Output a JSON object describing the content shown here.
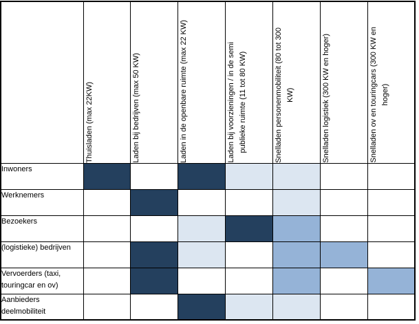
{
  "chart_data": {
    "type": "heatmap",
    "title": "",
    "columns": [
      "Thuisladen (max 22KW)",
      "Laden bij bedrijven (max 50 KW)",
      "Laden in de openbare ruimte (max 22 KW)",
      "Laden bij voorzieningen / in de semi publieke ruimte (11 tot 80 KW)",
      "Snelladen personenmobiliteit (80 tot 300 KW)",
      "Snelladen logistiek (300 KW en hoger)",
      "Snelladen ov en touringcars (300 KW en hoger)"
    ],
    "rows": [
      "Inwoners",
      "Werknemers",
      "Bezoekers",
      "(logistieke) bedrijven",
      "Vervoerders (taxi, touringcar en ov)",
      "Aanbieders deelmobiliteit"
    ],
    "values": [
      [
        "high",
        "none",
        "high",
        "low",
        "low",
        "none",
        "none"
      ],
      [
        "none",
        "high",
        "none",
        "none",
        "low",
        "none",
        "none"
      ],
      [
        "none",
        "none",
        "low",
        "high",
        "mid",
        "none",
        "none"
      ],
      [
        "none",
        "high",
        "low",
        "none",
        "mid",
        "mid",
        "none"
      ],
      [
        "none",
        "high",
        "none",
        "none",
        "mid",
        "none",
        "mid"
      ],
      [
        "none",
        "none",
        "high",
        "low",
        "low",
        "none",
        "none"
      ]
    ],
    "value_colors": {
      "high": "#24405e",
      "mid": "#95b3d7",
      "low": "#dce6f1",
      "none": "#ffffff"
    },
    "grid": true,
    "legend_position": "none"
  },
  "display": {
    "corner_label": "",
    "column_labels": [
      "Thuisladen (max 22KW)",
      "Laden bij bedrijven (max 50 KW)",
      "Laden in de openbare ruimte (max 22 KW)",
      "Laden bij voorzieningen / in de semi\npublieke ruimte (11 tot 80 KW)",
      "Snelladen personenmobiliteit (80 tot 300\nKW)",
      "Snelladen logistiek (300 KW en hoger)",
      "Snelladen ov en touringcars (300 KW en\nhoger)"
    ],
    "row_labels": [
      "Inwoners",
      "Werknemers",
      "Bezoekers",
      "(logistieke) bedrijven",
      "Vervoerders (taxi,\ntouringcar en ov)",
      "Aanbieders\ndeelmobiliteit"
    ]
  },
  "colors": {
    "grid": "#000000",
    "background": "#ffffff"
  }
}
